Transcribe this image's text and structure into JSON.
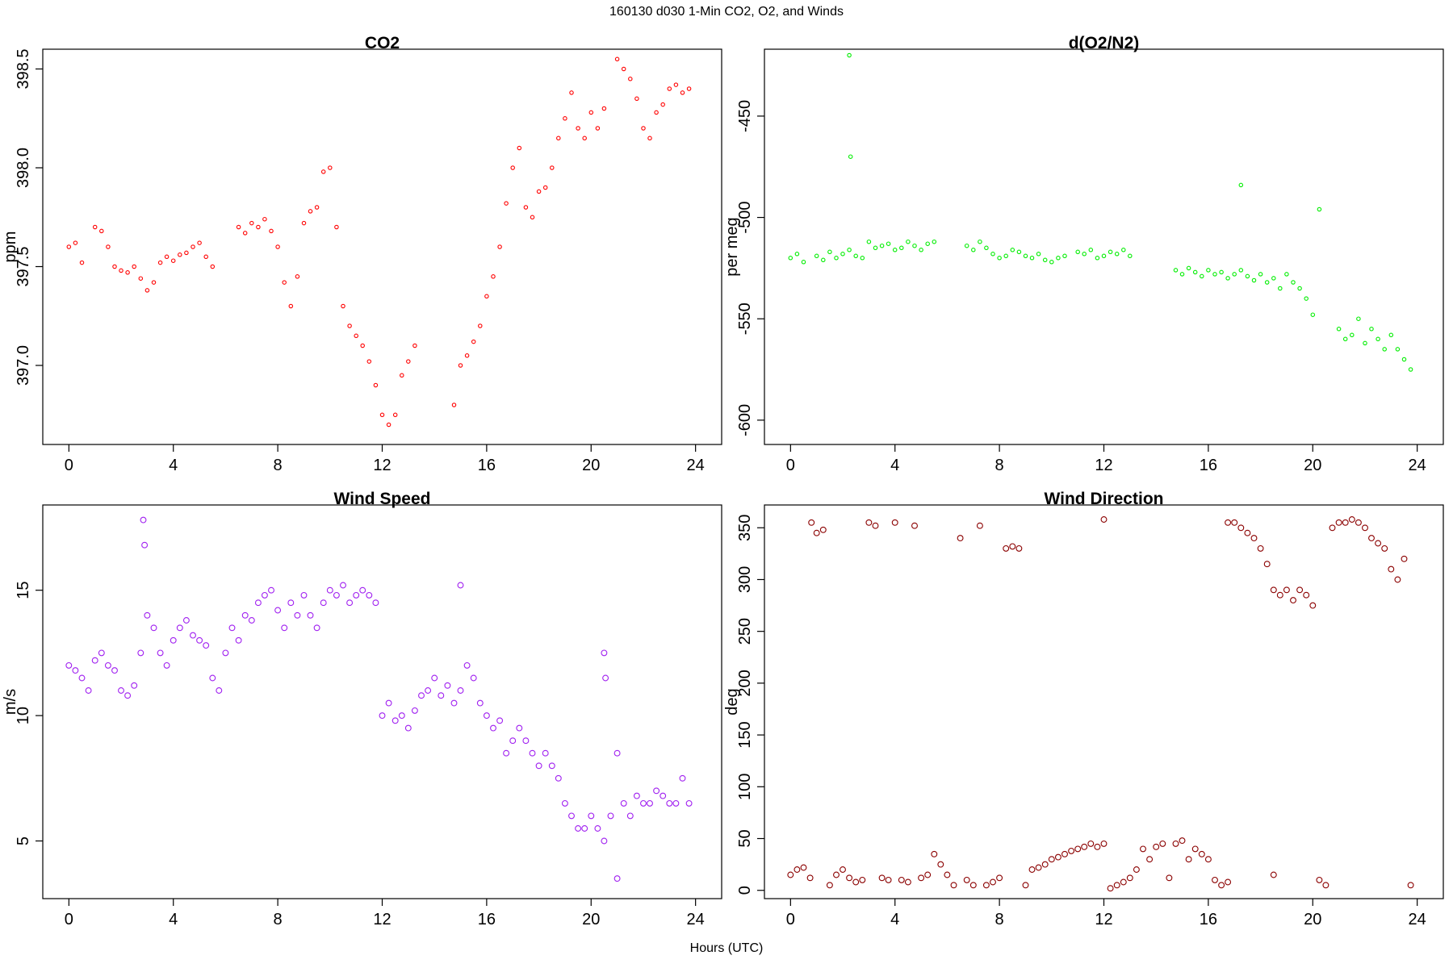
{
  "figure": {
    "title": "160130   d030   1-Min CO2, O2, and Winds",
    "xlabel": "Hours (UTC)"
  },
  "chart_data": [
    {
      "id": "co2",
      "type": "scatter",
      "title": "CO2",
      "ylabel": "ppm",
      "xlabel": "",
      "color": "#ff0000",
      "marker_radius": 2.2,
      "xlim": [
        -1,
        25
      ],
      "ylim": [
        396.6,
        398.6
      ],
      "xticks": [
        0,
        4,
        8,
        12,
        16,
        20,
        24
      ],
      "yticks": [
        397.0,
        397.5,
        398.0,
        398.5
      ],
      "ytick_labels": [
        "397.0",
        "397.5",
        "398.0",
        "398.5"
      ],
      "series": [
        {
          "x": [
            0.0,
            0.25,
            0.5,
            1.0,
            1.25,
            1.5,
            1.75,
            2.0,
            2.25,
            2.5,
            2.75,
            3.0,
            3.25,
            3.5,
            3.75,
            4.0,
            4.25,
            4.5,
            4.75,
            5.0,
            5.25,
            5.5,
            6.5,
            6.75,
            7.0,
            7.25,
            7.5,
            7.75,
            8.0,
            8.25,
            8.5,
            8.75,
            9.0,
            9.25,
            9.5,
            9.75,
            10.0,
            10.25,
            10.5,
            10.75,
            11.0,
            11.25,
            11.5,
            11.75,
            12.0,
            12.25,
            12.5,
            12.75,
            13.0,
            13.25,
            14.75,
            15.0,
            15.25,
            15.5,
            15.75,
            16.0,
            16.25,
            16.5,
            16.75,
            17.0,
            17.25,
            17.5,
            17.75,
            18.0,
            18.25,
            18.5,
            18.75,
            19.0,
            19.25,
            19.5,
            19.75,
            20.0,
            20.25,
            20.5,
            21.0,
            21.25,
            21.5,
            21.75,
            22.0,
            22.25,
            22.5,
            22.75,
            23.0,
            23.25,
            23.5,
            23.75
          ],
          "y": [
            397.6,
            397.62,
            397.52,
            397.7,
            397.68,
            397.6,
            397.5,
            397.48,
            397.47,
            397.5,
            397.44,
            397.38,
            397.42,
            397.52,
            397.55,
            397.53,
            397.56,
            397.57,
            397.6,
            397.62,
            397.55,
            397.5,
            397.7,
            397.67,
            397.72,
            397.7,
            397.74,
            397.68,
            397.6,
            397.42,
            397.3,
            397.45,
            397.72,
            397.78,
            397.8,
            397.98,
            398.0,
            397.7,
            397.3,
            397.2,
            397.15,
            397.1,
            397.02,
            396.9,
            396.75,
            396.7,
            396.75,
            396.95,
            397.02,
            397.1,
            396.8,
            397.0,
            397.05,
            397.12,
            397.2,
            397.35,
            397.45,
            397.6,
            397.82,
            398.0,
            398.1,
            397.8,
            397.75,
            397.88,
            397.9,
            398.0,
            398.15,
            398.25,
            398.38,
            398.2,
            398.15,
            398.28,
            398.2,
            398.3,
            398.55,
            398.5,
            398.45,
            398.35,
            398.2,
            398.15,
            398.28,
            398.32,
            398.4,
            398.42,
            398.38,
            398.4
          ]
        }
      ]
    },
    {
      "id": "o2n2",
      "type": "scatter",
      "title": "d(O2/N2)",
      "ylabel": "per meg",
      "xlabel": "",
      "color": "#00ee00",
      "marker_radius": 2.2,
      "xlim": [
        -1,
        25
      ],
      "ylim": [
        -612,
        -417
      ],
      "xticks": [
        0,
        4,
        8,
        12,
        16,
        20,
        24
      ],
      "yticks": [
        -600,
        -550,
        -500,
        -450
      ],
      "ytick_labels": [
        "-600",
        "-550",
        "-500",
        "-450"
      ],
      "series": [
        {
          "x": [
            0.0,
            0.25,
            0.5,
            1.0,
            1.25,
            1.5,
            1.75,
            2.0,
            2.25,
            2.5,
            2.75,
            3.0,
            3.25,
            3.5,
            3.75,
            4.0,
            4.25,
            4.5,
            4.75,
            5.0,
            5.25,
            5.5,
            6.75,
            7.0,
            7.25,
            7.5,
            7.75,
            8.0,
            8.25,
            8.5,
            8.75,
            9.0,
            9.25,
            9.5,
            9.75,
            10.0,
            10.25,
            10.5,
            11.0,
            11.25,
            11.5,
            11.75,
            12.0,
            12.25,
            12.5,
            12.75,
            13.0,
            14.75,
            15.0,
            15.25,
            15.5,
            15.75,
            16.0,
            16.25,
            16.5,
            16.75,
            17.0,
            17.25,
            17.5,
            17.75,
            18.0,
            18.25,
            18.5,
            18.75,
            19.0,
            19.25,
            19.5,
            19.75,
            20.0,
            21.0,
            21.25,
            21.5,
            21.75,
            22.0,
            22.25,
            22.5,
            22.75,
            23.0,
            23.25,
            23.5,
            23.75,
            2.25,
            2.3,
            17.25,
            20.25
          ],
          "y": [
            -520,
            -518,
            -522,
            -519,
            -521,
            -517,
            -520,
            -518,
            -516,
            -519,
            -520,
            -512,
            -515,
            -514,
            -513,
            -516,
            -515,
            -512,
            -514,
            -516,
            -513,
            -512,
            -514,
            -516,
            -512,
            -515,
            -518,
            -520,
            -519,
            -516,
            -517,
            -519,
            -520,
            -518,
            -521,
            -522,
            -520,
            -519,
            -517,
            -518,
            -516,
            -520,
            -519,
            -517,
            -518,
            -516,
            -519,
            -526,
            -528,
            -525,
            -527,
            -529,
            -526,
            -528,
            -527,
            -530,
            -528,
            -526,
            -529,
            -531,
            -528,
            -532,
            -530,
            -535,
            -528,
            -532,
            -535,
            -540,
            -548,
            -555,
            -560,
            -558,
            -550,
            -562,
            -555,
            -560,
            -565,
            -558,
            -565,
            -570,
            -575,
            -420,
            -470,
            -484,
            -496
          ]
        }
      ]
    },
    {
      "id": "wspd",
      "type": "scatter",
      "title": "Wind Speed",
      "ylabel": "m/s",
      "xlabel": "",
      "color": "#a020f0",
      "marker_radius": 3.4,
      "xlim": [
        -1,
        25
      ],
      "ylim": [
        2.7,
        18.4
      ],
      "xticks": [
        0,
        4,
        8,
        12,
        16,
        20,
        24
      ],
      "yticks": [
        5,
        10,
        15
      ],
      "ytick_labels": [
        "5",
        "10",
        "15"
      ],
      "series": [
        {
          "x": [
            0.0,
            0.25,
            0.5,
            0.75,
            1.0,
            1.25,
            1.5,
            1.75,
            2.0,
            2.25,
            2.5,
            2.75,
            3.0,
            3.25,
            3.5,
            3.75,
            4.0,
            4.25,
            4.5,
            4.75,
            5.0,
            5.25,
            5.5,
            5.75,
            6.0,
            6.25,
            6.5,
            6.75,
            7.0,
            7.25,
            7.5,
            7.75,
            8.0,
            8.25,
            8.5,
            8.75,
            9.0,
            9.25,
            9.5,
            9.75,
            10.0,
            10.25,
            10.5,
            10.75,
            11.0,
            11.25,
            11.5,
            11.75,
            12.0,
            12.25,
            12.5,
            12.75,
            13.0,
            13.25,
            13.5,
            13.75,
            14.0,
            14.25,
            14.5,
            14.75,
            15.0,
            15.25,
            15.5,
            15.75,
            16.0,
            16.25,
            16.5,
            16.75,
            17.0,
            17.25,
            17.5,
            17.75,
            18.0,
            18.25,
            18.5,
            18.75,
            19.0,
            19.25,
            19.5,
            19.75,
            20.0,
            20.25,
            20.5,
            20.75,
            21.0,
            21.25,
            21.5,
            21.75,
            22.0,
            22.25,
            22.5,
            22.75,
            23.0,
            23.25,
            23.5,
            23.75,
            2.85,
            2.9,
            15.0,
            20.5,
            20.55,
            21.0
          ],
          "y": [
            12.0,
            11.8,
            11.5,
            11.0,
            12.2,
            12.5,
            12.0,
            11.8,
            11.0,
            10.8,
            11.2,
            12.5,
            14.0,
            13.5,
            12.5,
            12.0,
            13.0,
            13.5,
            13.8,
            13.2,
            13.0,
            12.8,
            11.5,
            11.0,
            12.5,
            13.5,
            13.0,
            14.0,
            13.8,
            14.5,
            14.8,
            15.0,
            14.2,
            13.5,
            14.5,
            14.0,
            14.8,
            14.0,
            13.5,
            14.5,
            15.0,
            14.8,
            15.2,
            14.5,
            14.8,
            15.0,
            14.8,
            14.5,
            10.0,
            10.5,
            9.8,
            10.0,
            9.5,
            10.2,
            10.8,
            11.0,
            11.5,
            10.8,
            11.2,
            10.5,
            11.0,
            12.0,
            11.5,
            10.5,
            10.0,
            9.5,
            9.8,
            8.5,
            9.0,
            9.5,
            9.0,
            8.5,
            8.0,
            8.5,
            8.0,
            7.5,
            6.5,
            6.0,
            5.5,
            5.5,
            6.0,
            5.5,
            5.0,
            6.0,
            8.5,
            6.5,
            6.0,
            6.8,
            6.5,
            6.5,
            7.0,
            6.8,
            6.5,
            6.5,
            7.5,
            6.5,
            17.8,
            16.8,
            15.2,
            12.5,
            11.5,
            3.5
          ]
        }
      ]
    },
    {
      "id": "wdir",
      "type": "scatter",
      "title": "Wind Direction",
      "ylabel": "deg",
      "xlabel": "",
      "color": "#8b0000",
      "marker_radius": 3.4,
      "xlim": [
        -1,
        25
      ],
      "ylim": [
        -8,
        372
      ],
      "xticks": [
        0,
        4,
        8,
        12,
        16,
        20,
        24
      ],
      "yticks": [
        0,
        50,
        100,
        150,
        200,
        250,
        300,
        350
      ],
      "ytick_labels": [
        "0",
        "50",
        "100",
        "150",
        "200",
        "250",
        "300",
        "350"
      ],
      "series": [
        {
          "x": [
            0.0,
            0.25,
            0.5,
            0.75,
            0.8,
            1.0,
            1.25,
            1.5,
            1.75,
            2.0,
            2.25,
            2.5,
            2.75,
            3.0,
            3.25,
            3.5,
            3.75,
            4.0,
            4.25,
            4.5,
            4.75,
            5.0,
            5.25,
            5.5,
            5.75,
            6.0,
            6.25,
            6.5,
            6.75,
            7.0,
            7.25,
            7.5,
            7.75,
            8.0,
            8.25,
            8.5,
            8.75,
            9.0,
            9.25,
            9.5,
            9.75,
            10.0,
            10.25,
            10.5,
            10.75,
            11.0,
            11.25,
            11.5,
            11.75,
            12.0,
            12.0,
            12.25,
            12.5,
            12.75,
            13.0,
            13.25,
            13.5,
            13.75,
            14.0,
            14.25,
            14.5,
            14.75,
            15.0,
            15.25,
            15.5,
            15.75,
            16.0,
            16.25,
            16.5,
            16.75,
            16.75,
            17.0,
            17.25,
            17.5,
            17.75,
            18.0,
            18.25,
            18.5,
            18.5,
            18.75,
            19.0,
            19.25,
            19.5,
            19.75,
            20.0,
            20.25,
            20.5,
            20.75,
            21.0,
            21.25,
            21.5,
            21.75,
            22.0,
            22.25,
            22.5,
            22.75,
            23.0,
            23.25,
            23.5,
            23.75
          ],
          "y": [
            15,
            20,
            22,
            12,
            355,
            345,
            348,
            5,
            15,
            20,
            12,
            8,
            10,
            355,
            352,
            12,
            10,
            355,
            10,
            8,
            352,
            12,
            15,
            35,
            25,
            15,
            5,
            340,
            10,
            5,
            352,
            5,
            8,
            12,
            330,
            332,
            330,
            5,
            20,
            22,
            25,
            30,
            32,
            35,
            38,
            40,
            42,
            45,
            42,
            45,
            358,
            2,
            5,
            8,
            12,
            20,
            40,
            30,
            42,
            45,
            12,
            45,
            48,
            30,
            40,
            35,
            30,
            10,
            5,
            8,
            355,
            355,
            350,
            345,
            340,
            330,
            315,
            290,
            15,
            285,
            290,
            280,
            290,
            285,
            275,
            10,
            5,
            350,
            355,
            355,
            358,
            355,
            350,
            340,
            335,
            330,
            310,
            300,
            320,
            5
          ]
        }
      ]
    }
  ]
}
